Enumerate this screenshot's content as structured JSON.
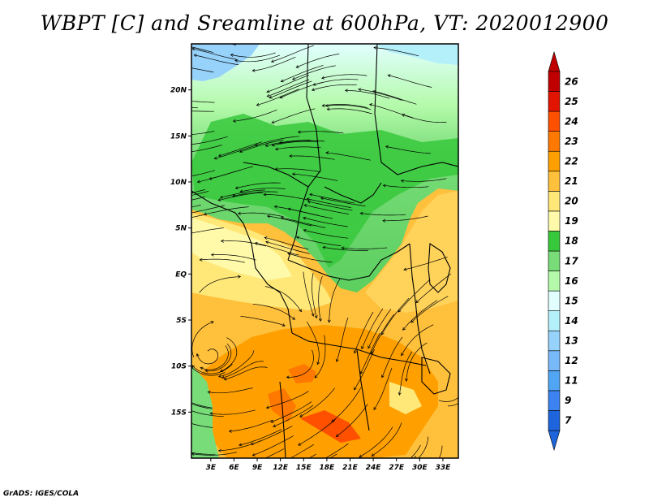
{
  "title": "WBPT [C] and Sreamline at 600hPa, VT: 2020012900",
  "credit": "GrADS: IGES/COLA",
  "map": {
    "lat_ticks": [
      20,
      15,
      10,
      5,
      0,
      -5,
      -10,
      -15
    ],
    "lat_labels": [
      "20N",
      "15N",
      "10N",
      "5N",
      "EQ",
      "5S",
      "10S",
      "15S"
    ],
    "lon_ticks": [
      3,
      6,
      9,
      12,
      15,
      18,
      21,
      24,
      27,
      30,
      33
    ],
    "lon_labels": [
      "3E",
      "6E",
      "9E",
      "12E",
      "15E",
      "18E",
      "21E",
      "24E",
      "27E",
      "30E",
      "33E"
    ],
    "lon_range": [
      0.5,
      35
    ],
    "lat_range": [
      -20,
      25
    ]
  },
  "colorbar": {
    "labels": [
      "7",
      "9",
      "11",
      "12",
      "13",
      "14",
      "15",
      "16",
      "17",
      "18",
      "19",
      "20",
      "21",
      "22",
      "23",
      "24",
      "25",
      "26"
    ],
    "colors": [
      "#1e64dc",
      "#3c82f0",
      "#50a5f5",
      "#78b9fa",
      "#96d2fa",
      "#b4f0fa",
      "#e1ffff",
      "#b4faaa",
      "#78dc78",
      "#37c83c",
      "#fffaaa",
      "#ffe878",
      "#ffc03c",
      "#ffa000",
      "#ff7800",
      "#ff5000",
      "#e11400",
      "#c00000"
    ]
  }
}
